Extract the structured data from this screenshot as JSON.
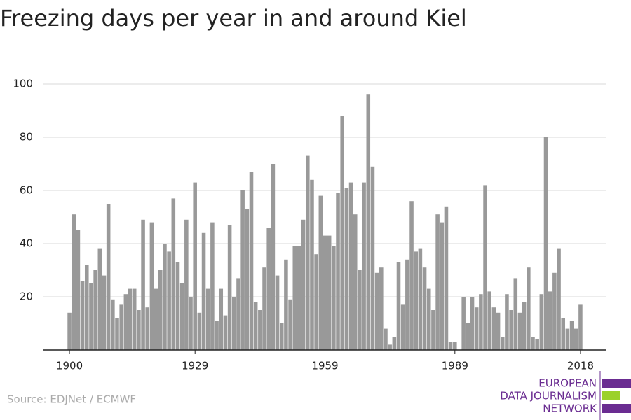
{
  "chart_data": {
    "type": "bar",
    "title": "Freezing days per year in and around Kiel",
    "source": "Source: EDJNet / ECMWF",
    "logo": [
      "EUROPEAN",
      "DATA JOURNALISM",
      "NETWORK"
    ],
    "color": "#999999",
    "x": [
      1900,
      1901,
      1902,
      1903,
      1904,
      1905,
      1906,
      1907,
      1908,
      1909,
      1910,
      1911,
      1912,
      1913,
      1914,
      1915,
      1916,
      1917,
      1918,
      1919,
      1920,
      1921,
      1922,
      1923,
      1924,
      1925,
      1926,
      1927,
      1928,
      1929,
      1930,
      1931,
      1932,
      1933,
      1934,
      1935,
      1936,
      1937,
      1938,
      1939,
      1940,
      1941,
      1942,
      1943,
      1944,
      1945,
      1946,
      1947,
      1948,
      1949,
      1950,
      1951,
      1952,
      1953,
      1954,
      1955,
      1956,
      1957,
      1958,
      1959,
      1960,
      1961,
      1962,
      1963,
      1964,
      1965,
      1966,
      1967,
      1968,
      1969,
      1970,
      1971,
      1972,
      1973,
      1974,
      1975,
      1976,
      1977,
      1978,
      1979,
      1980,
      1981,
      1982,
      1983,
      1984,
      1985,
      1986,
      1987,
      1988,
      1989,
      1990,
      1991,
      1992,
      1993,
      1994,
      1995,
      1996,
      1997,
      1998,
      1999,
      2000,
      2001,
      2002,
      2003,
      2004,
      2005,
      2006,
      2007,
      2008,
      2009,
      2010,
      2011,
      2012,
      2013,
      2014,
      2015,
      2016,
      2017,
      2018
    ],
    "values": [
      14,
      51,
      45,
      26,
      32,
      25,
      30,
      38,
      28,
      55,
      19,
      12,
      17,
      21,
      23,
      23,
      15,
      49,
      16,
      48,
      23,
      30,
      40,
      37,
      57,
      33,
      25,
      49,
      20,
      63,
      14,
      44,
      23,
      48,
      11,
      23,
      13,
      47,
      20,
      27,
      60,
      53,
      67,
      18,
      15,
      31,
      46,
      70,
      28,
      10,
      34,
      19,
      39,
      39,
      49,
      73,
      64,
      36,
      58,
      43,
      43,
      39,
      59,
      88,
      61,
      63,
      51,
      30,
      63,
      96,
      69,
      29,
      31,
      8,
      2,
      5,
      33,
      17,
      34,
      56,
      37,
      38,
      31,
      23,
      15,
      51,
      48,
      54,
      3,
      3,
      0,
      20,
      10,
      20,
      16,
      21,
      62,
      22,
      16,
      14,
      5,
      21,
      15,
      27,
      14,
      18,
      31,
      5,
      4,
      21,
      80,
      22,
      29,
      38,
      12,
      8,
      11,
      8,
      17
    ],
    "xlim": [
      1894,
      2024
    ],
    "xticks": [
      1900,
      1929,
      1959,
      1989,
      2018
    ],
    "ylim": [
      0,
      100
    ],
    "yticks": [
      20,
      40,
      60,
      80,
      100
    ],
    "grid": true
  }
}
